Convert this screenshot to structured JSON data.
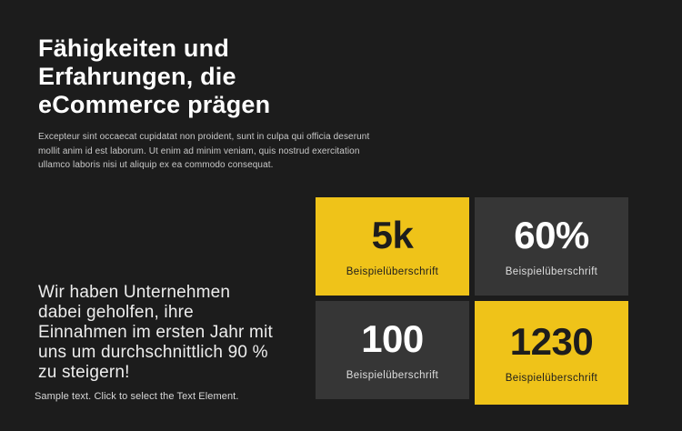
{
  "page": {
    "background": "#1c1c1c",
    "accent_yellow": "#efc319",
    "card_dark": "#363636"
  },
  "hero": {
    "title_lines": [
      "Fähigkeiten und",
      "Erfahrungen, die",
      "eCommerce prägen"
    ],
    "paragraph_lines": [
      "Excepteur sint occaecat cupidatat non proident, sunt in culpa qui officia deserunt",
      "mollit anim id est laborum. Ut enim ad minim veniam, quis nostrud exercitation",
      "ullamco laboris nisi ut aliquip ex ea commodo consequat."
    ]
  },
  "stats": {
    "cards": [
      {
        "value": "5k",
        "label": "Beispielüberschrift",
        "variant": "yellow"
      },
      {
        "value": "60%",
        "label": "Beispielüberschrift",
        "variant": "dark"
      },
      {
        "value": "100",
        "label": "Beispielüberschrift",
        "variant": "dark"
      },
      {
        "value": "1230",
        "label": "Beispielüberschrift",
        "variant": "yellow"
      }
    ]
  },
  "promo": {
    "lines": [
      "Wir haben Unternehmen",
      "dabei geholfen, ihre",
      "Einnahmen im ersten Jahr mit",
      "uns um durchschnittlich 90 %",
      "zu steigern!"
    ]
  },
  "footer_note": {
    "text": "Sample text. Click to select the Text Element."
  }
}
